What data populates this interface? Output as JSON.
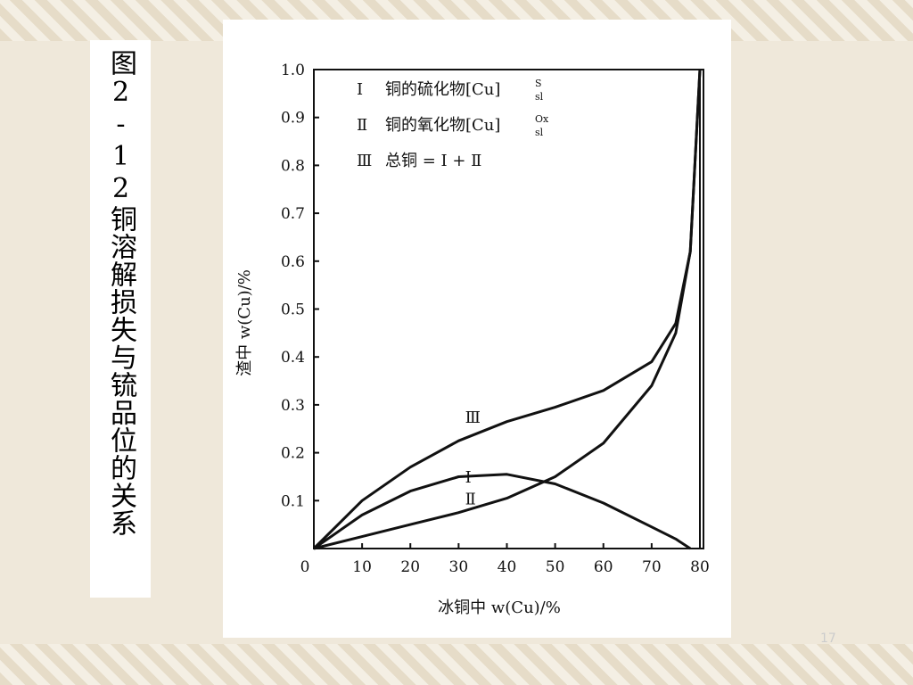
{
  "slide_title": "图2-12铜溶解损失与锍品位的关系",
  "page_number": "17",
  "chart_data": {
    "type": "line",
    "xlabel": "冰铜中 w(Cu)/%",
    "ylabel": "渣中 w(Cu)/%",
    "x": [
      0,
      10,
      20,
      30,
      40,
      50,
      60,
      70,
      75,
      78,
      80
    ],
    "series": [
      {
        "name": "Ⅰ",
        "color": "#111111",
        "values": [
          0,
          0.07,
          0.12,
          0.15,
          0.155,
          0.135,
          0.095,
          0.045,
          0.02,
          0,
          null
        ]
      },
      {
        "name": "Ⅱ",
        "color": "#111111",
        "values": [
          0,
          0.025,
          0.05,
          0.075,
          0.105,
          0.15,
          0.22,
          0.34,
          0.45,
          0.62,
          1.0
        ]
      },
      {
        "name": "Ⅲ",
        "color": "#111111",
        "values": [
          0,
          0.1,
          0.17,
          0.225,
          0.265,
          0.295,
          0.33,
          0.39,
          0.47,
          0.62,
          1.0
        ]
      }
    ],
    "legend": [
      {
        "text": "铜的硫化物[Cu]",
        "sup": "S",
        "sub": "sl"
      },
      {
        "text": "铜的氧化物[Cu]",
        "sup": "Ox",
        "sub": "sl"
      },
      {
        "text": "总铜 = Ⅰ + Ⅱ"
      }
    ],
    "xlim": [
      0,
      80
    ],
    "ylim": [
      0,
      1.0
    ],
    "xticks": [
      0,
      10,
      20,
      30,
      40,
      50,
      60,
      70,
      80
    ],
    "yticks": [
      0.1,
      0.2,
      0.3,
      0.4,
      0.5,
      0.6,
      0.7,
      0.8,
      0.9,
      {
        "value": 1.0,
        "label": "1.0"
      }
    ]
  }
}
